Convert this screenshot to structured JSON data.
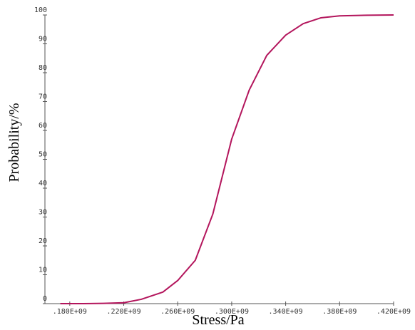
{
  "chart_data": {
    "type": "line",
    "xlabel": "Stress/Pa",
    "ylabel": "Probability/%",
    "series": [
      {
        "color": "#b3155c",
        "x": [
          173000000,
          190000000,
          205000000,
          220000000,
          233000000,
          249000000,
          260000000,
          273000000,
          286000000,
          300000000,
          313000000,
          326000000,
          340000000,
          353000000,
          366000000,
          380000000,
          400000000,
          420000000
        ],
        "values": [
          0,
          0,
          0.1,
          0.3,
          1.5,
          4,
          8,
          15,
          31,
          57,
          74,
          86,
          93,
          97,
          99,
          99.7,
          99.9,
          100
        ]
      }
    ],
    "xlim": [
      160000000,
      420000000
    ],
    "xticks": [
      {
        "value": 180000000,
        "label": ".180E+09"
      },
      {
        "value": 220000000,
        "label": ".220E+09"
      },
      {
        "value": 260000000,
        "label": ".260E+09"
      },
      {
        "value": 300000000,
        "label": ".300E+09"
      },
      {
        "value": 340000000,
        "label": ".340E+09"
      },
      {
        "value": 380000000,
        "label": ".380E+09"
      },
      {
        "value": 420000000,
        "label": ".420E+09"
      }
    ],
    "ylim": [
      0,
      100
    ],
    "yticks": [
      0,
      10,
      20,
      30,
      40,
      50,
      60,
      70,
      80,
      90,
      100
    ]
  }
}
